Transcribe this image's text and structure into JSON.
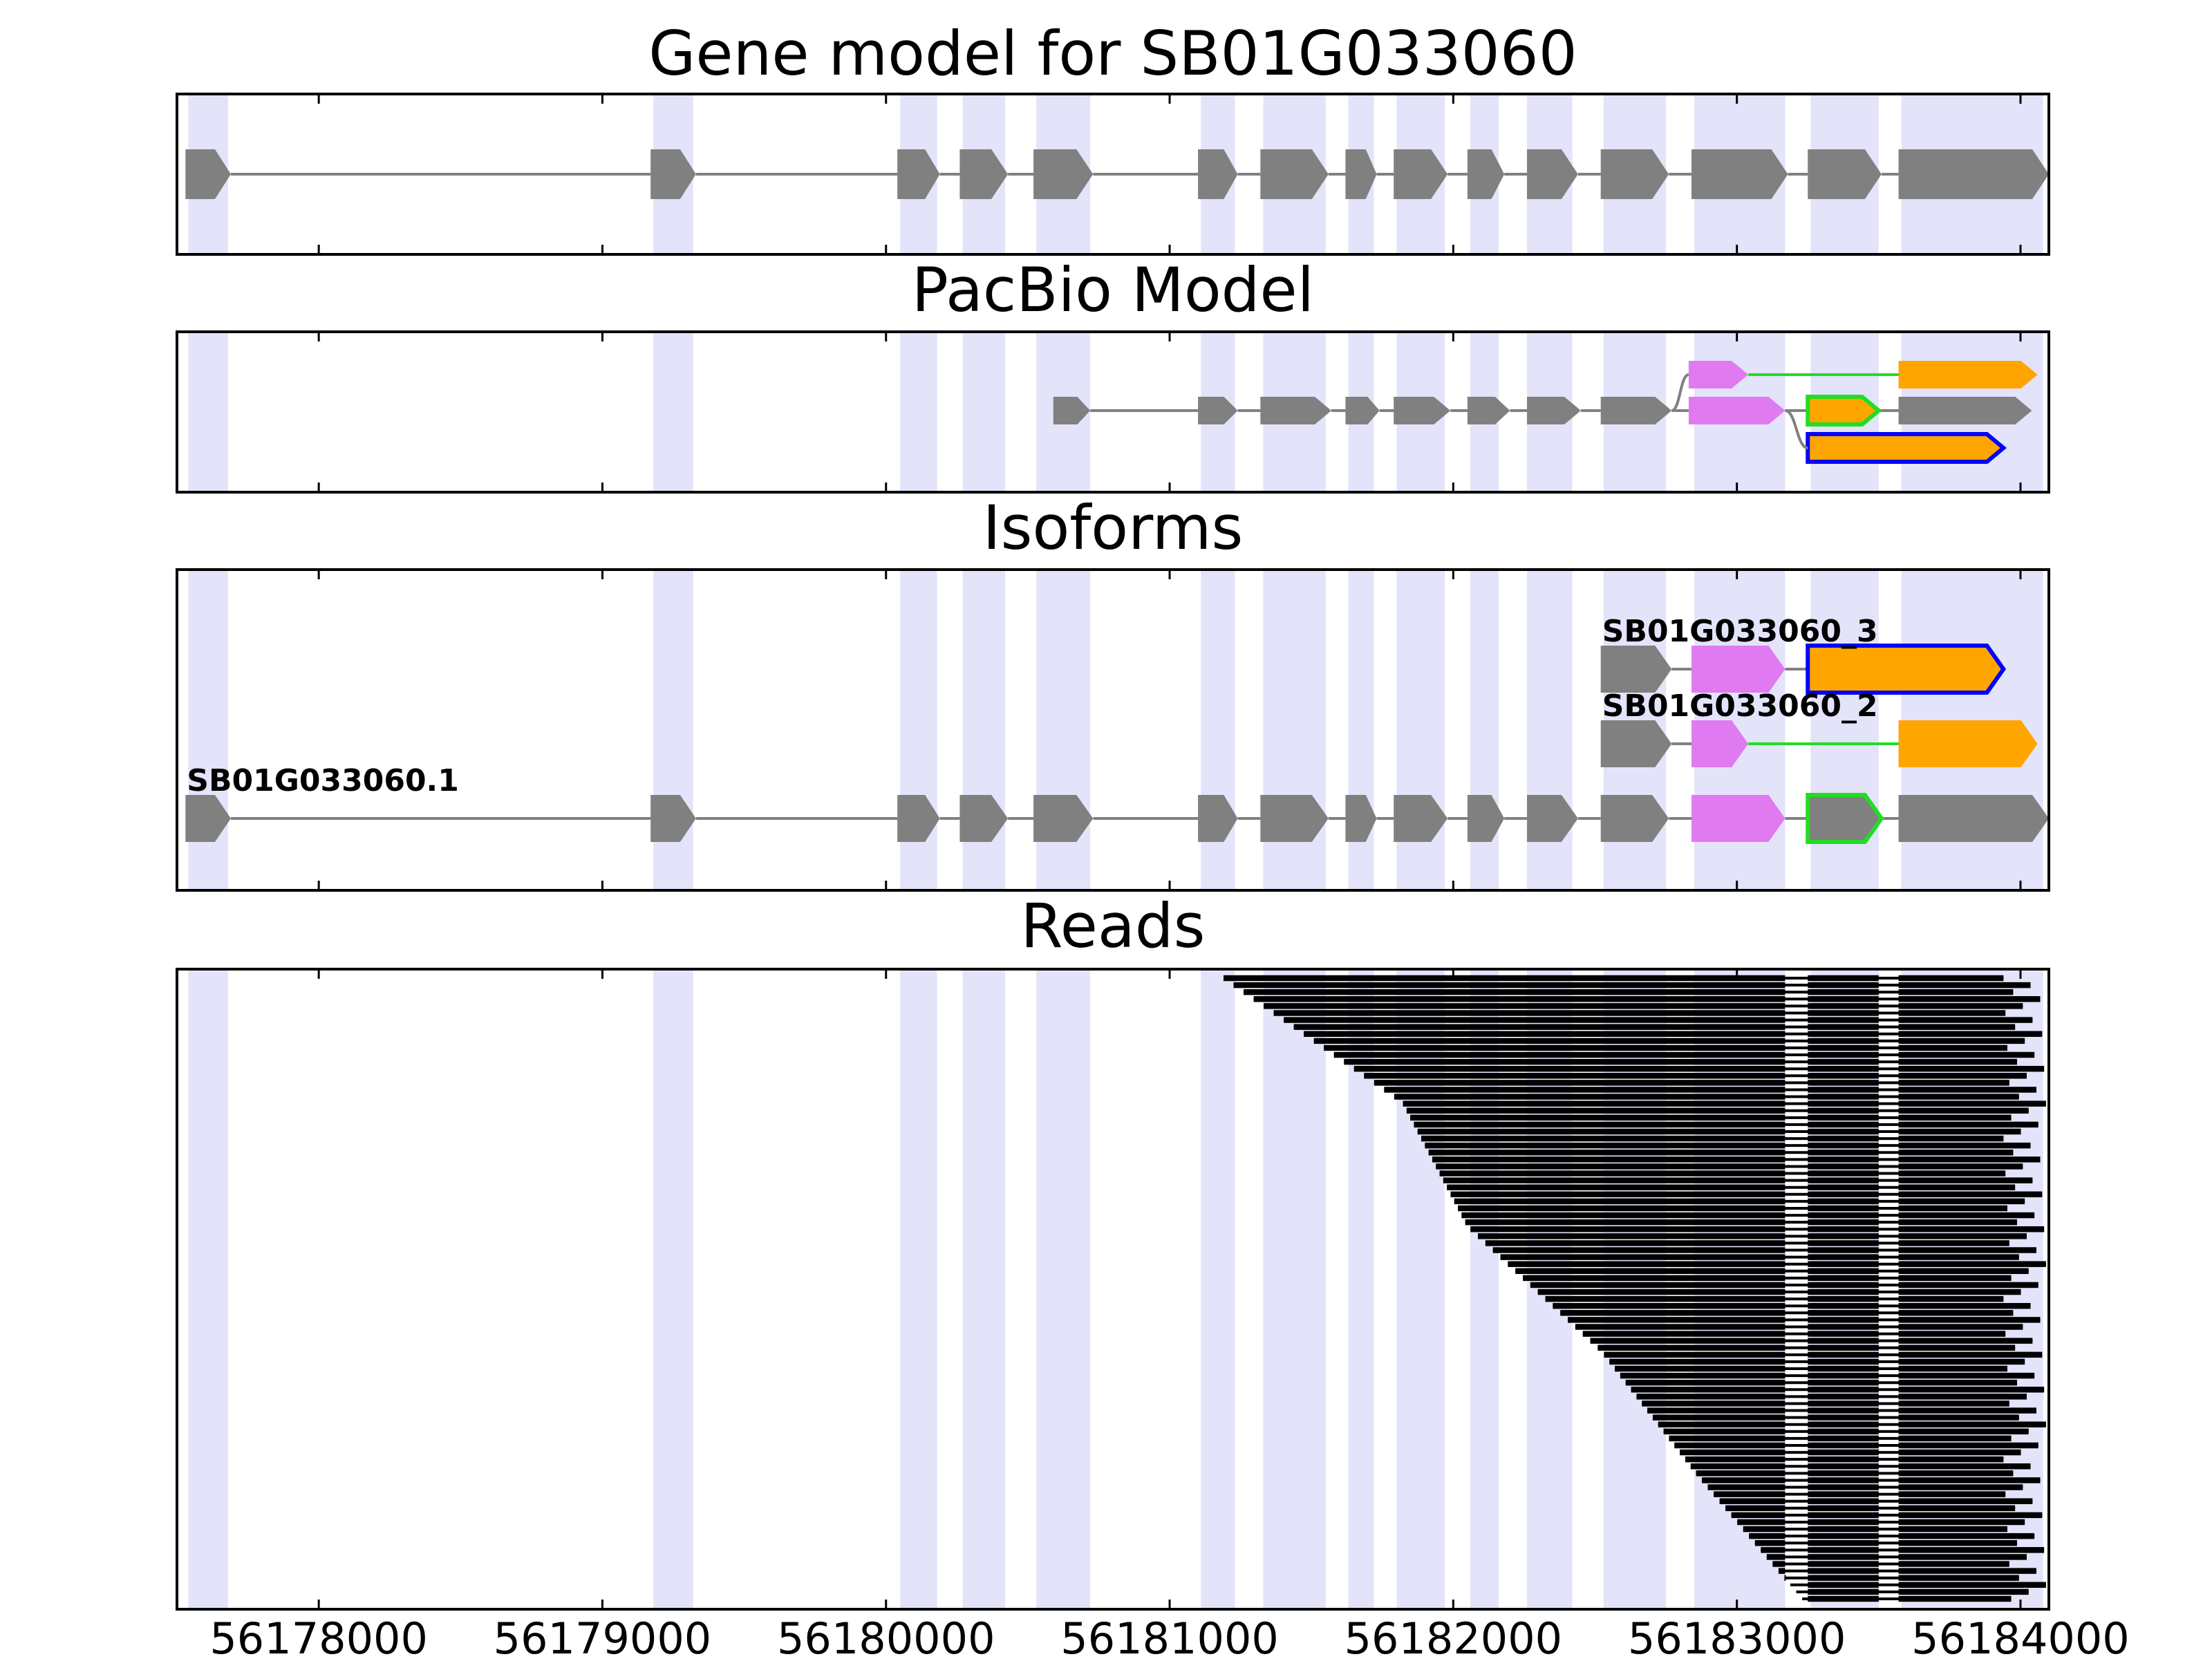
{
  "chart_data": {
    "type": "gene-track",
    "xlim": [
      56177500,
      56184100
    ],
    "xticks": [
      56178000,
      56179000,
      56180000,
      56181000,
      56182000,
      56183000,
      56184000
    ],
    "tick_labels": [
      "56178000",
      "56179000",
      "56180000",
      "56181000",
      "56182000",
      "56183000",
      "56184000"
    ],
    "grid": false,
    "colors": {
      "exon": "#808080",
      "intron": "#808080",
      "highlight": "#e3e3fa",
      "pink": "#e07af0",
      "orange": "#ffa500",
      "green": "#22dd22",
      "blue": "#0000ff",
      "read": "#000000"
    },
    "highlight_bands": [
      [
        56177540,
        56177680
      ],
      [
        56179180,
        56179320
      ],
      [
        56180050,
        56180180
      ],
      [
        56180270,
        56180420
      ],
      [
        56180530,
        56180720
      ],
      [
        56181110,
        56181230
      ],
      [
        56181330,
        56181550
      ],
      [
        56181630,
        56181720
      ],
      [
        56181800,
        56181970
      ],
      [
        56182060,
        56182160
      ],
      [
        56182260,
        56182420
      ],
      [
        56182530,
        56182750
      ],
      [
        56182850,
        56183170
      ],
      [
        56183260,
        56183500
      ],
      [
        56183580,
        56184080
      ]
    ],
    "panels": [
      {
        "title": "Gene model for SB01G033060",
        "tracks": [
          {
            "row": 0,
            "intron_color": "#808080",
            "exons": [
              {
                "start": 56177530,
                "end": 56177690,
                "fill": "#808080"
              },
              {
                "start": 56179170,
                "end": 56179330,
                "fill": "#808080"
              },
              {
                "start": 56180040,
                "end": 56180190,
                "fill": "#808080"
              },
              {
                "start": 56180260,
                "end": 56180430,
                "fill": "#808080"
              },
              {
                "start": 56180520,
                "end": 56180730,
                "fill": "#808080"
              },
              {
                "start": 56181100,
                "end": 56181240,
                "fill": "#808080"
              },
              {
                "start": 56181320,
                "end": 56181560,
                "fill": "#808080"
              },
              {
                "start": 56181620,
                "end": 56181730,
                "fill": "#808080"
              },
              {
                "start": 56181790,
                "end": 56181980,
                "fill": "#808080"
              },
              {
                "start": 56182050,
                "end": 56182180,
                "fill": "#808080"
              },
              {
                "start": 56182260,
                "end": 56182440,
                "fill": "#808080"
              },
              {
                "start": 56182520,
                "end": 56182760,
                "fill": "#808080"
              },
              {
                "start": 56182840,
                "end": 56183180,
                "fill": "#808080"
              },
              {
                "start": 56183250,
                "end": 56183510,
                "fill": "#808080"
              },
              {
                "start": 56183570,
                "end": 56184100,
                "fill": "#808080"
              }
            ]
          }
        ]
      },
      {
        "title": "PacBio Model",
        "tracks": [
          {
            "row": 0,
            "intron_color": "#22dd22",
            "exons": [
              {
                "start": 56182830,
                "end": 56183040,
                "fill": "#e07af0"
              },
              {
                "start": 56183570,
                "end": 56184060,
                "fill": "#ffa500"
              }
            ]
          },
          {
            "row": 1,
            "intron_color": "#808080",
            "exons": [
              {
                "start": 56180590,
                "end": 56180720,
                "fill": "#808080"
              },
              {
                "start": 56181100,
                "end": 56181240,
                "fill": "#808080"
              },
              {
                "start": 56181320,
                "end": 56181570,
                "fill": "#808080"
              },
              {
                "start": 56181620,
                "end": 56181740,
                "fill": "#808080"
              },
              {
                "start": 56181790,
                "end": 56181990,
                "fill": "#808080"
              },
              {
                "start": 56182050,
                "end": 56182200,
                "fill": "#808080"
              },
              {
                "start": 56182260,
                "end": 56182450,
                "fill": "#808080"
              },
              {
                "start": 56182520,
                "end": 56182770,
                "fill": "#808080"
              },
              {
                "start": 56182830,
                "end": 56183170,
                "fill": "#e07af0"
              },
              {
                "start": 56183250,
                "end": 56183500,
                "fill": "#ffa500",
                "stroke": "#22dd22"
              },
              {
                "start": 56183570,
                "end": 56184040,
                "fill": "#808080"
              }
            ]
          },
          {
            "row": 2,
            "intron_color": "#808080",
            "exons": [
              {
                "start": 56183250,
                "end": 56183940,
                "fill": "#ffa500",
                "stroke": "#0000ff"
              }
            ]
          }
        ],
        "connectors": [
          {
            "from": 56182770,
            "to": 56182830,
            "from_row": 1,
            "to_row": 0
          },
          {
            "from": 56183170,
            "to": 56183250,
            "from_row": 1,
            "to_row": 2
          }
        ]
      },
      {
        "title": "Isoforms",
        "tracks": [
          {
            "row": 0,
            "label": "SB01G033060_3",
            "label_x": 56182520,
            "intron_color": "#808080",
            "exons": [
              {
                "start": 56182520,
                "end": 56182770,
                "fill": "#808080"
              },
              {
                "start": 56182840,
                "end": 56183170,
                "fill": "#e07af0"
              },
              {
                "start": 56183250,
                "end": 56183940,
                "fill": "#ffa500",
                "stroke": "#0000ff"
              }
            ]
          },
          {
            "row": 1,
            "label": "SB01G033060_2",
            "label_x": 56182520,
            "intron_color": "#808080",
            "intron_colors": [
              "#808080",
              "#22dd22"
            ],
            "exons": [
              {
                "start": 56182520,
                "end": 56182770,
                "fill": "#808080"
              },
              {
                "start": 56182840,
                "end": 56183040,
                "fill": "#e07af0"
              },
              {
                "start": 56183570,
                "end": 56184060,
                "fill": "#ffa500"
              }
            ]
          },
          {
            "row": 2,
            "label": "SB01G033060.1",
            "label_x": 56177530,
            "intron_color": "#808080",
            "exons": [
              {
                "start": 56177530,
                "end": 56177690,
                "fill": "#808080"
              },
              {
                "start": 56179170,
                "end": 56179330,
                "fill": "#808080"
              },
              {
                "start": 56180040,
                "end": 56180190,
                "fill": "#808080"
              },
              {
                "start": 56180260,
                "end": 56180430,
                "fill": "#808080"
              },
              {
                "start": 56180520,
                "end": 56180730,
                "fill": "#808080"
              },
              {
                "start": 56181100,
                "end": 56181240,
                "fill": "#808080"
              },
              {
                "start": 56181320,
                "end": 56181560,
                "fill": "#808080"
              },
              {
                "start": 56181620,
                "end": 56181730,
                "fill": "#808080"
              },
              {
                "start": 56181790,
                "end": 56181980,
                "fill": "#808080"
              },
              {
                "start": 56182050,
                "end": 56182180,
                "fill": "#808080"
              },
              {
                "start": 56182260,
                "end": 56182440,
                "fill": "#808080"
              },
              {
                "start": 56182520,
                "end": 56182760,
                "fill": "#808080"
              },
              {
                "start": 56182840,
                "end": 56183170,
                "fill": "#e07af0"
              },
              {
                "start": 56183250,
                "end": 56183510,
                "fill": "#808080",
                "stroke": "#22dd22"
              },
              {
                "start": 56183570,
                "end": 56184100,
                "fill": "#808080"
              }
            ]
          }
        ]
      },
      {
        "title": "Reads",
        "read_count": 90,
        "introns": [
          [
            56183170,
            56183250
          ],
          [
            56183500,
            56183570
          ]
        ],
        "starts": [
          56181190,
          56181820,
          56182050,
          56182520,
          56182860,
          56183230
        ],
        "end_range": [
          56183940,
          56184090
        ]
      }
    ]
  }
}
